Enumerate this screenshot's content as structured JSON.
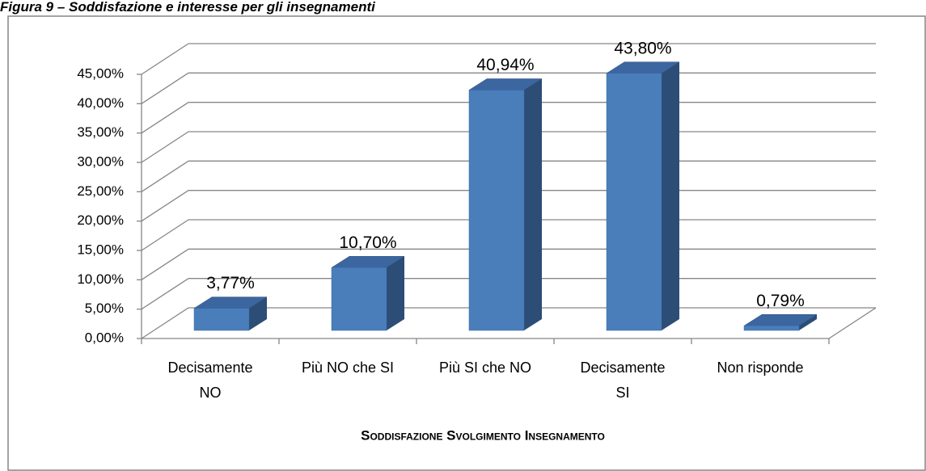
{
  "chart_data": {
    "type": "bar3d",
    "title": "Figura 9 – Soddisfazione e interesse per gli insegnamenti",
    "x_label": "Soddisfazione Svolgimento Insegnamento",
    "categories": [
      "Decisamente\nNO",
      "Più NO che SI",
      "Più SI che NO",
      "Decisamente\nSI",
      "Non risponde"
    ],
    "values": [
      3.77,
      10.7,
      40.94,
      43.8,
      0.79
    ],
    "value_labels": [
      "3,77%",
      "10,70%",
      "40,94%",
      "43,80%",
      "0,79%"
    ],
    "color": "#4a7ebb",
    "ylim": [
      0,
      45
    ],
    "yticks": [
      {
        "value": 0,
        "label": "0,00%"
      },
      {
        "value": 5,
        "label": "5,00%"
      },
      {
        "value": 10,
        "label": "10,00%"
      },
      {
        "value": 15,
        "label": "15,00%"
      },
      {
        "value": 20,
        "label": "20,00%"
      },
      {
        "value": 25,
        "label": "25,00%"
      },
      {
        "value": 30,
        "label": "30,00%"
      },
      {
        "value": 35,
        "label": "35,00%"
      },
      {
        "value": 40,
        "label": "40,00%"
      },
      {
        "value": 45,
        "label": "45,00%"
      }
    ],
    "grid": true
  }
}
